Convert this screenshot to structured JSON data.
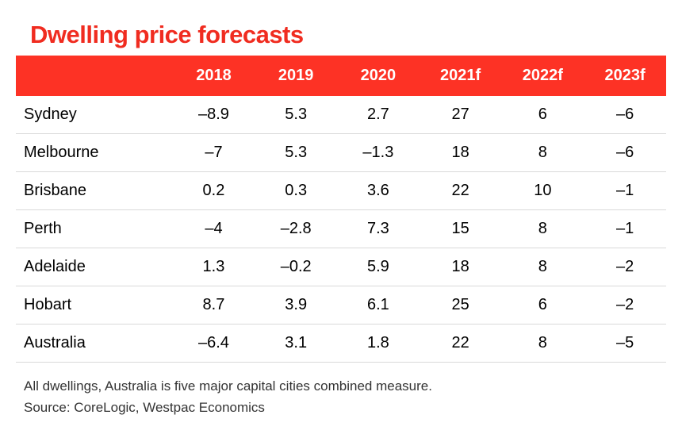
{
  "title": "Dwelling price forecasts",
  "title_color": "#f02c20",
  "header_bg": "#fd3225",
  "header_text_color": "#ffffff",
  "row_border_color": "#d9d9d9",
  "cell_text_color": "#000000",
  "minus_glyph": "–",
  "columns": [
    "",
    "2018",
    "2019",
    "2020",
    "2021f",
    "2022f",
    "2023f"
  ],
  "rows": [
    {
      "label": "Sydney",
      "values": [
        "-8.9",
        "5.3",
        "2.7",
        "27",
        "6",
        "-6"
      ]
    },
    {
      "label": "Melbourne",
      "values": [
        "-7",
        "5.3",
        "-1.3",
        "18",
        "8",
        "-6"
      ]
    },
    {
      "label": "Brisbane",
      "values": [
        "0.2",
        "0.3",
        "3.6",
        "22",
        "10",
        "-1"
      ]
    },
    {
      "label": "Perth",
      "values": [
        "-4",
        "-2.8",
        "7.3",
        "15",
        "8",
        "-1"
      ]
    },
    {
      "label": "Adelaide",
      "values": [
        "1.3",
        "-0.2",
        "5.9",
        "18",
        "8",
        "-2"
      ]
    },
    {
      "label": "Hobart",
      "values": [
        "8.7",
        "3.9",
        "6.1",
        "25",
        "6",
        "-2"
      ]
    },
    {
      "label": "Australia",
      "values": [
        "-6.4",
        "3.1",
        "1.8",
        "22",
        "8",
        "-5"
      ]
    }
  ],
  "footnote_line1": "All dwellings, Australia is five major capital cities combined measure.",
  "footnote_line2": "Source: CoreLogic, Westpac Economics"
}
